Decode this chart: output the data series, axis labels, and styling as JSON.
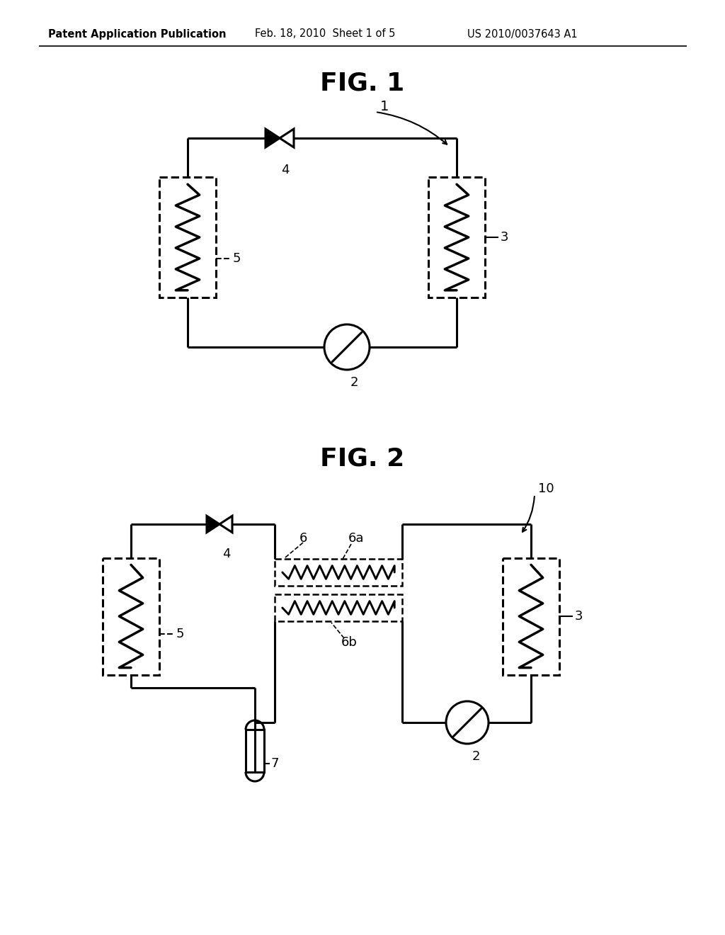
{
  "background_color": "#ffffff",
  "header_text": "Patent Application Publication",
  "header_date": "Feb. 18, 2010  Sheet 1 of 5",
  "header_patent": "US 2010/0037643 A1",
  "fig1_title": "FIG. 1",
  "fig2_title": "FIG. 2",
  "line_color": "#000000",
  "line_width": 2.2,
  "label_fontsize": 13,
  "title_fontsize": 26,
  "header_fontsize": 11
}
